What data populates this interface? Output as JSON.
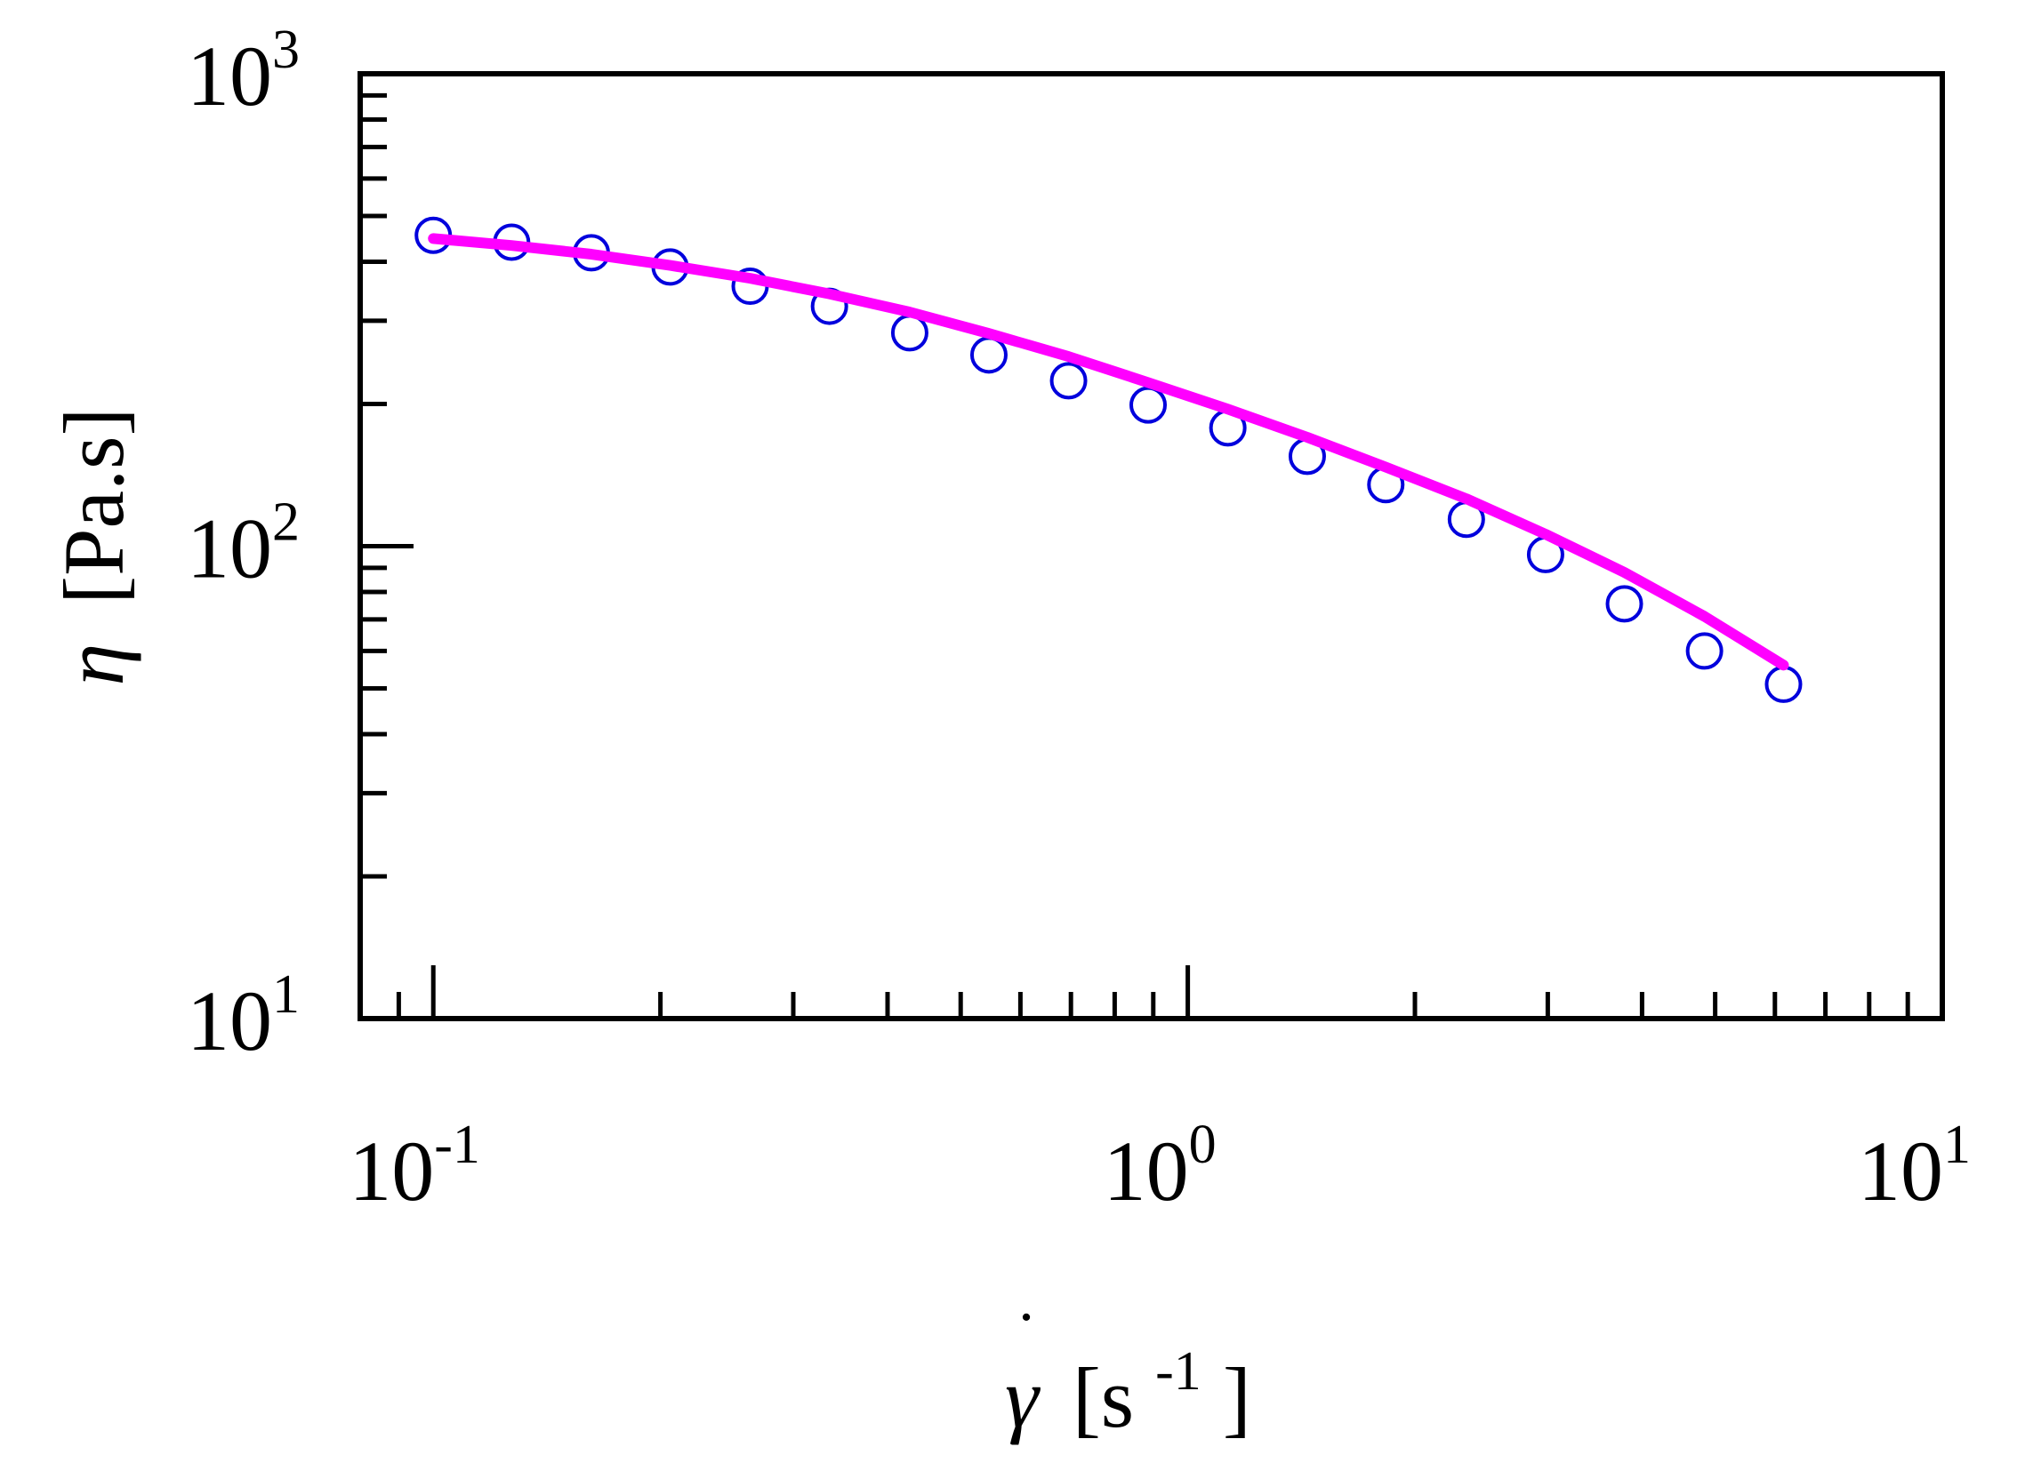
{
  "chart_data": {
    "type": "scatter",
    "title": "",
    "x_scale": "log",
    "y_scale": "log",
    "xlim": [
      0.08,
      10
    ],
    "ylim": [
      10,
      1000
    ],
    "xlabel": {
      "symbol": "γ",
      "unit_open": "[s",
      "unit_exp": "-1",
      "unit_close": "]"
    },
    "ylabel": {
      "symbol": "η",
      "unit": "[Pa.s]"
    },
    "x_ticks": [
      {
        "value": 0.1,
        "base": "10",
        "exp": "-1"
      },
      {
        "value": 1,
        "base": "10",
        "exp": "0"
      },
      {
        "value": 10,
        "base": "10",
        "exp": "1"
      }
    ],
    "y_ticks": [
      {
        "value": 10,
        "base": "10",
        "exp": "1"
      },
      {
        "value": 100,
        "base": "10",
        "exp": "2"
      },
      {
        "value": 1000,
        "base": "10",
        "exp": "3"
      }
    ],
    "grid": false,
    "legend": "none",
    "series": [
      {
        "kind": "markers",
        "marker": "open-circle",
        "color": "#0000dd",
        "x": [
          0.1,
          0.127,
          0.162,
          0.206,
          0.263,
          0.335,
          0.428,
          0.545,
          0.695,
          0.886,
          1.13,
          1.44,
          1.83,
          2.34,
          2.98,
          3.79,
          4.84,
          6.16
        ],
        "y": [
          455,
          440,
          418,
          390,
          355,
          322,
          283,
          254,
          224,
          199,
          178,
          155,
          135,
          114,
          96,
          75.5,
          60,
          51
        ]
      },
      {
        "kind": "line",
        "color": "#ff00ff",
        "x": [
          0.1,
          0.127,
          0.162,
          0.206,
          0.263,
          0.335,
          0.428,
          0.545,
          0.695,
          0.886,
          1.13,
          1.44,
          1.83,
          2.34,
          2.98,
          3.79,
          4.84,
          6.16
        ],
        "y": [
          448,
          433,
          415,
          393,
          369,
          342,
          313,
          282,
          252,
          222,
          195,
          170,
          147,
          126,
          106,
          88,
          71,
          56
        ]
      }
    ]
  }
}
